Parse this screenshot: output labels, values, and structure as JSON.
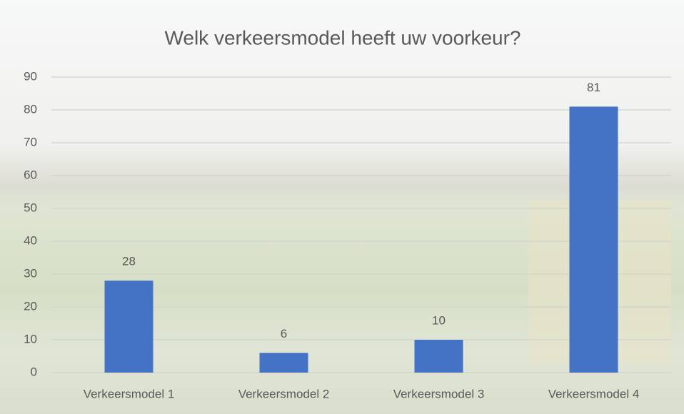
{
  "chart_data": {
    "type": "bar",
    "title": "Welk verkeersmodel heeft uw voorkeur?",
    "categories": [
      "Verkeersmodel 1",
      "Verkeersmodel 2",
      "Verkeersmodel 3",
      "Verkeersmodel 4"
    ],
    "values": [
      28,
      6,
      10,
      81
    ],
    "color": "#4472c4",
    "ylim": [
      0,
      90
    ],
    "yticks": [
      0,
      10,
      20,
      30,
      40,
      50,
      60,
      70,
      80,
      90
    ],
    "grid": true
  }
}
